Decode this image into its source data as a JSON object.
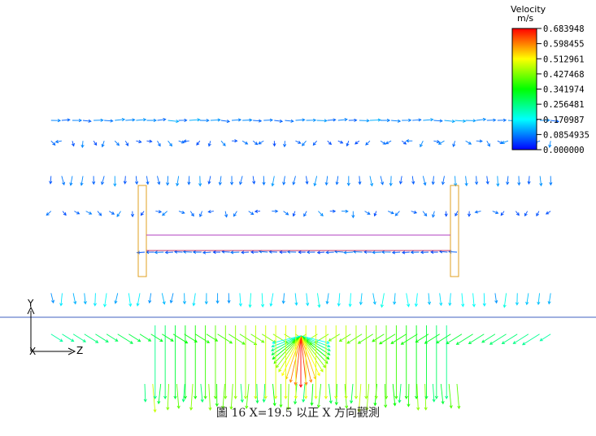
{
  "chart_data": {
    "type": "vector-field",
    "legend": {
      "title": "Velocity",
      "unit": "m/s",
      "ticks": [
        "0.683948",
        "0.598455",
        "0.512961",
        "0.427468",
        "0.341974",
        "0.256481",
        "0.170987",
        "0.0854935",
        "0.000000"
      ],
      "min": 0.0,
      "max": 0.683948
    },
    "axes": {
      "y_label": "Y",
      "x_label": "X",
      "z_label": "Z"
    },
    "vector_rows": [
      {
        "y": 0.95,
        "z_min": 0.02,
        "z_max": 0.98,
        "n": 48,
        "speed": 0.1,
        "dir": "right"
      },
      {
        "y": 0.88,
        "z_min": 0.02,
        "z_max": 0.98,
        "n": 48,
        "speed": 0.08,
        "dir": "mixed"
      },
      {
        "y": 0.76,
        "z_min": 0.02,
        "z_max": 0.98,
        "n": 48,
        "speed": 0.09,
        "dir": "down"
      },
      {
        "y": 0.64,
        "z_min": 0.02,
        "z_max": 0.98,
        "n": 44,
        "speed": 0.08,
        "dir": "mixed"
      },
      {
        "y": 0.5,
        "z_min": 0.2,
        "z_max": 0.8,
        "n": 34,
        "speed": 0.07,
        "dir": "left"
      },
      {
        "y": 0.36,
        "z_min": 0.02,
        "z_max": 0.98,
        "n": 46,
        "speed": 0.16,
        "dir": "down"
      },
      {
        "y": 0.22,
        "z_min": 0.02,
        "z_max": 0.98,
        "n": 46,
        "speed": 0.28,
        "dir": "converge"
      },
      {
        "y": 0.05,
        "z_min": 0.2,
        "z_max": 0.8,
        "n": 40,
        "speed": 0.4,
        "dir": "down"
      }
    ],
    "jet": {
      "z": 0.5,
      "speed": 0.683948
    }
  },
  "caption": "圖 16 X=19.5 以正 X 方向觀測"
}
